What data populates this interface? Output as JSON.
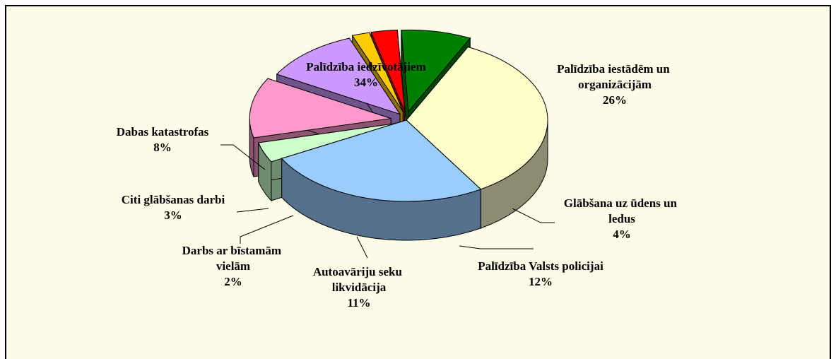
{
  "chart_data": {
    "type": "pie3d",
    "categories": [
      "Palīdzība iedzīvotājiem",
      "Palīdzība iestādēm un organizācijām",
      "Glābšana uz ūdens un ledus",
      "Palīdzība Valsts policijai",
      "Autoavāriju seku likvidācija",
      "Darbs ar bīstamām vielām",
      "Citi glābšanas darbi",
      "Dabas katastrofas"
    ],
    "values": [
      34,
      26,
      4,
      12,
      11,
      2,
      3,
      8
    ],
    "value_labels": [
      "34%",
      "26%",
      "4%",
      "12%",
      "11%",
      "2%",
      "3%",
      "8%"
    ],
    "colors": [
      "#ffffcc",
      "#99ccff",
      "#ccffcc",
      "#ff99cc",
      "#cc99ff",
      "#ffcc00",
      "#ff0000",
      "#008000"
    ]
  }
}
